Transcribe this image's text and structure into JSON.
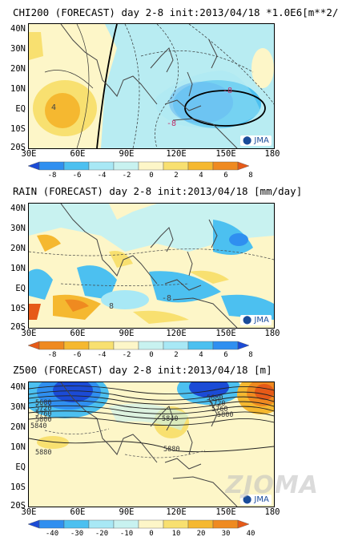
{
  "panels": [
    {
      "title": "CHI200 (FORECAST) day 2-8 init:2013/04/18  *1.0E6[m**2/s]",
      "contour_labels": [
        "-8",
        "-8",
        "4"
      ],
      "colorbar_ticks": [
        "-8",
        "-6",
        "-4",
        "-2",
        "0",
        "2",
        "4",
        "6",
        "8"
      ],
      "colorbar_colors": [
        "#1b4bd6",
        "#2f8ff0",
        "#4cc0f0",
        "#a8e8f5",
        "#c8f2f0",
        "#fdf6c8",
        "#f8e070",
        "#f5b830",
        "#ef8a20",
        "#e65a18"
      ]
    },
    {
      "title": "RAIN (FORECAST) day 2-8 init:2013/04/18  [mm/day]",
      "contour_labels": [
        "8",
        "-8"
      ],
      "colorbar_ticks": [
        "-8",
        "-6",
        "-4",
        "-2",
        "0",
        "2",
        "4",
        "6",
        "8"
      ],
      "colorbar_colors": [
        "#e65a18",
        "#ef8a20",
        "#f5b830",
        "#f8e070",
        "#fdf6c8",
        "#c8f2f0",
        "#a8e8f5",
        "#4cc0f0",
        "#2f8ff0",
        "#1b4bd6"
      ]
    },
    {
      "title": "Z500 (FORECAST) day 2-8 init:2013/04/18  [m]",
      "contour_labels": [
        "5680",
        "5720",
        "5760",
        "5800",
        "5840",
        "5880",
        "5840",
        "5880",
        "5680",
        "5720",
        "5760",
        "5800"
      ],
      "colorbar_ticks": [
        "-40",
        "-30",
        "-20",
        "-10",
        "0",
        "10",
        "20",
        "30",
        "40"
      ],
      "colorbar_colors": [
        "#1b4bd6",
        "#2f8ff0",
        "#4cc0f0",
        "#a8e8f5",
        "#c8f2f0",
        "#fdf6c8",
        "#f8e070",
        "#f5b830",
        "#ef8a20",
        "#e65a18"
      ]
    }
  ],
  "axes": {
    "lat_labels": [
      "40N",
      "30N",
      "20N",
      "10N",
      "EQ",
      "10S",
      "20S"
    ],
    "lon_labels": [
      "30E",
      "60E",
      "90E",
      "120E",
      "150E",
      "180"
    ]
  },
  "logo": "JMA",
  "watermark": "ZJOMA"
}
